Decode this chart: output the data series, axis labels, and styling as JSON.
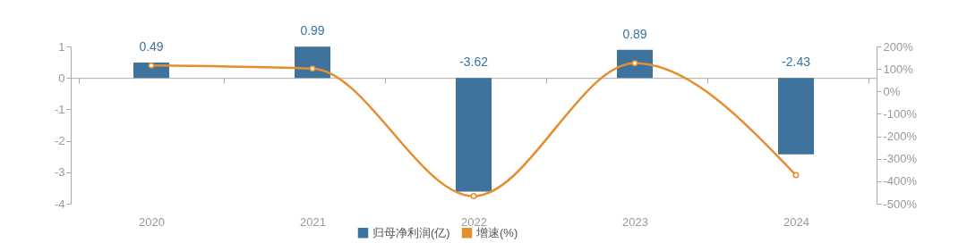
{
  "chart_data": {
    "type": "bar",
    "categories": [
      "2020",
      "2021",
      "2022",
      "2023",
      "2024"
    ],
    "series": [
      {
        "name": "归母净利润(亿)",
        "color": "#3d739c",
        "values": [
          0.49,
          0.99,
          -3.62,
          0.89,
          -2.43
        ],
        "value_labels": [
          "0.49",
          "0.99",
          "-3.62",
          "0.89",
          "-2.43"
        ]
      },
      {
        "name": "增速(%)",
        "type": "line",
        "axis": "y2",
        "color": "#e58e2f",
        "values": [
          115,
          102,
          -466,
          125,
          -373
        ]
      }
    ],
    "ylim": [
      -4,
      1
    ],
    "yticks": [
      -4,
      -3,
      -2,
      -1,
      0,
      1
    ],
    "y2lim": [
      -500,
      200
    ],
    "y2ticks": [
      {
        "value": -500,
        "label": "-500%"
      },
      {
        "value": -400,
        "label": "-400%"
      },
      {
        "value": -300,
        "label": "-300%"
      },
      {
        "value": -200,
        "label": "-200%"
      },
      {
        "value": -100,
        "label": "-100%"
      },
      {
        "value": 0,
        "label": "0%"
      },
      {
        "value": 100,
        "label": "100%"
      },
      {
        "value": 200,
        "label": "200%"
      }
    ],
    "legend": "bottom",
    "marker": "circle"
  }
}
